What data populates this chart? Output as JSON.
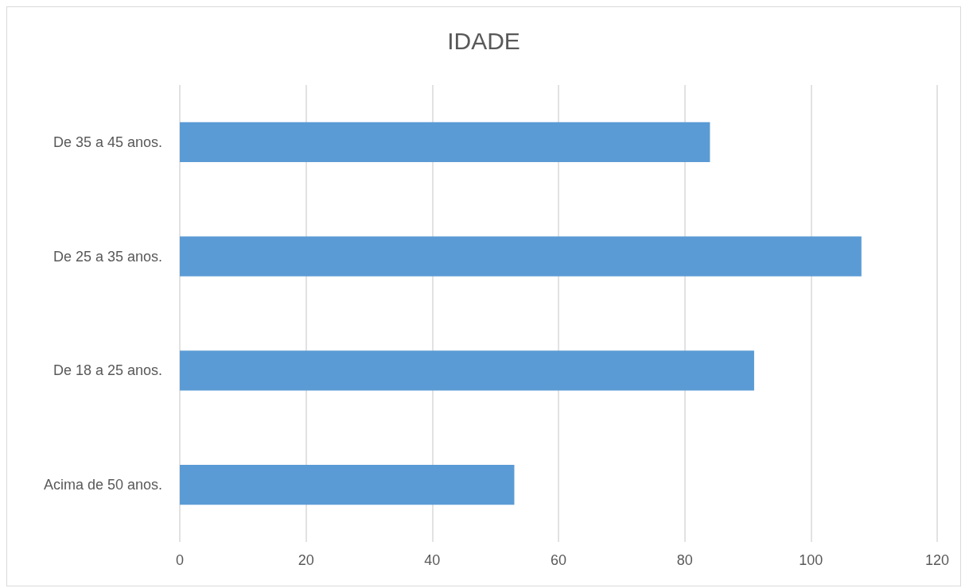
{
  "chart_data": {
    "type": "bar",
    "title": "IDADE",
    "orientation": "horizontal",
    "categories": [
      "De 35 a 45 anos.",
      "De 25 a 35 anos.",
      "De 18 a 25 anos.",
      "Acima de 50 anos."
    ],
    "values": [
      84,
      108,
      91,
      53
    ],
    "color": "#5b9bd5",
    "xlim": [
      0,
      120
    ],
    "xticks": [
      0,
      20,
      40,
      60,
      80,
      100,
      120
    ],
    "grid": "x"
  }
}
